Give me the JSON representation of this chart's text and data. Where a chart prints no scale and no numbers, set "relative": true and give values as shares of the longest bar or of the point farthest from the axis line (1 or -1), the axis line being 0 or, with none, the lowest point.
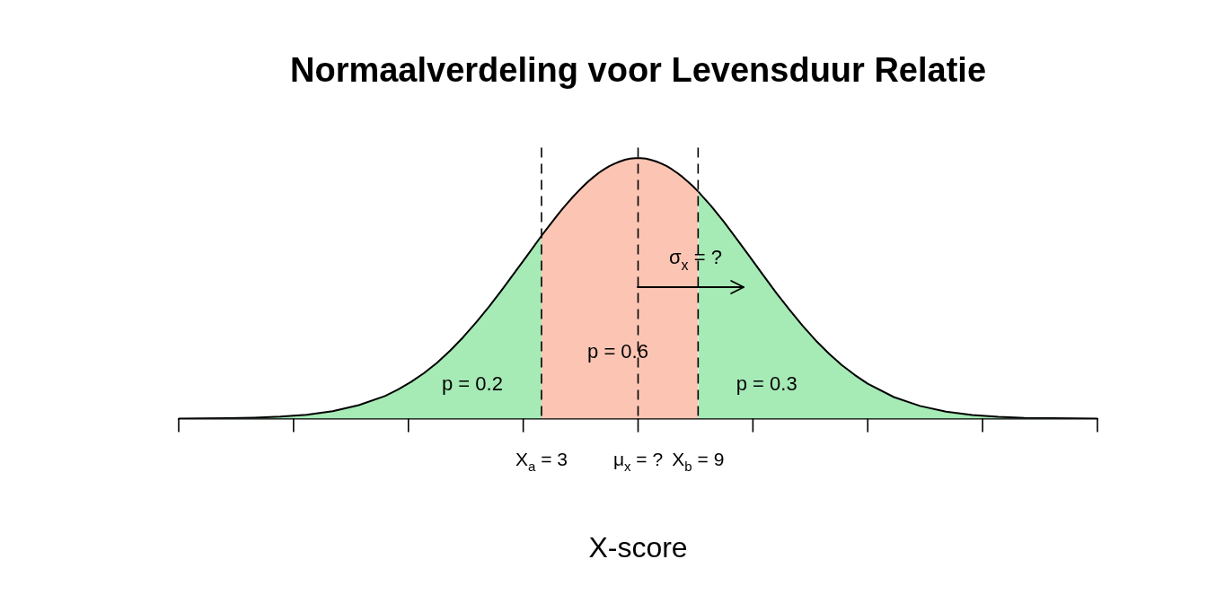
{
  "chart_data": {
    "type": "area",
    "title": "Normaalverdeling voor Levensduur Relatie",
    "xlabel": "X-score",
    "relative": true,
    "xlim": [
      -10.9,
      24.3
    ],
    "xticks": [
      {
        "value": -10.9,
        "label": null
      },
      {
        "value": -6.5,
        "label": null
      },
      {
        "value": -2.1,
        "label": null
      },
      {
        "value": 2.3,
        "label": null
      },
      {
        "value": 6.7,
        "label": null
      },
      {
        "value": 11.1,
        "label": null
      },
      {
        "value": 15.5,
        "label": null
      },
      {
        "value": 19.9,
        "label": null
      },
      {
        "value": 24.3,
        "label": null
      },
      {
        "value": 3,
        "label": "X$_{a}$ = 3"
      },
      {
        "value": 6.7,
        "label": "μ$_{x}$ = ?"
      },
      {
        "value": 9,
        "label": "X$_{b}$ = 9"
      }
    ],
    "series": [
      {
        "color": "#a6eab6",
        "x": [
          -10.9,
          -10,
          -9,
          -8,
          -7,
          -6,
          -5,
          -4,
          -3,
          -2.5,
          -2,
          -1.5,
          -1,
          -0.5,
          0,
          0.5,
          1,
          1.5,
          2,
          2.5,
          3
        ],
        "values": [
          0,
          0.001,
          0.002,
          0.004,
          0.008,
          0.015,
          0.029,
          0.052,
          0.087,
          0.112,
          0.141,
          0.175,
          0.215,
          0.261,
          0.313,
          0.37,
          0.431,
          0.497,
          0.565,
          0.633,
          0.702
        ]
      },
      {
        "color": "#fcc5b3",
        "x": [
          3,
          3.2,
          3.4,
          3.6,
          3.8,
          4.0,
          4.2,
          4.4,
          4.6,
          4.8,
          5.0,
          5.2,
          5.4,
          5.6,
          5.8,
          6.0,
          6.2,
          6.4,
          6.6,
          6.8,
          7.0,
          7.2,
          7.4,
          7.6,
          7.8,
          8.0,
          8.2,
          8.4,
          8.6,
          8.8,
          9
        ],
        "values": [
          0.702,
          0.728,
          0.754,
          0.78,
          0.805,
          0.828,
          0.851,
          0.872,
          0.892,
          0.911,
          0.928,
          0.944,
          0.957,
          0.969,
          0.979,
          0.987,
          0.994,
          0.998,
          1,
          1,
          0.998,
          0.993,
          0.987,
          0.979,
          0.969,
          0.957,
          0.943,
          0.928,
          0.91,
          0.892,
          0.872
        ]
      },
      {
        "color": "#a6eab6",
        "x": [
          9,
          9.5,
          10,
          10.5,
          11,
          11.5,
          12,
          12.5,
          13,
          13.5,
          14,
          14.5,
          15,
          15.5,
          16.5,
          17.5,
          18.5,
          19.5,
          20.5,
          21.5,
          22.5,
          23.5,
          24.3
        ],
        "values": [
          0.872,
          0.816,
          0.754,
          0.687,
          0.619,
          0.55,
          0.482,
          0.418,
          0.357,
          0.301,
          0.251,
          0.206,
          0.168,
          0.134,
          0.083,
          0.049,
          0.027,
          0.014,
          0.007,
          0.003,
          0.002,
          0.001,
          0
        ]
      }
    ],
    "ref_lines": [
      {
        "axis": "x",
        "value": 3,
        "line_style": "dashed",
        "color": "#000000"
      },
      {
        "axis": "x",
        "value": 6.7,
        "line_style": "dashed",
        "color": "#000000"
      },
      {
        "axis": "x",
        "value": 9,
        "line_style": "dashed",
        "color": "#000000"
      }
    ],
    "annotations": [
      "p = 0.2",
      "p = 0.6",
      "p = 0.3",
      {
        "text": "σ$_{x}$ = ?",
        "x": 8.9,
        "y": 0.62
      }
    ]
  }
}
